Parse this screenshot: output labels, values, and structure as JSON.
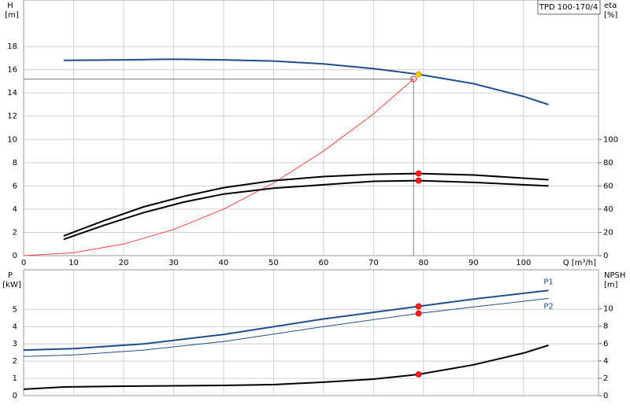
{
  "chart_data": [
    {
      "type": "line",
      "title": "TPD 100-170/4",
      "ylabel": "H",
      "yunit": "[m]",
      "y2label": "eta",
      "y2unit": "[%]",
      "xlabel": "Q [m³/h]",
      "xlim": [
        0,
        115
      ],
      "xticks": [
        0,
        10,
        20,
        30,
        40,
        50,
        60,
        70,
        80,
        90,
        100
      ],
      "xtick_labels": true,
      "ylim": [
        0,
        22
      ],
      "yticks": [
        0,
        2,
        4,
        6,
        8,
        10,
        12,
        14,
        16,
        18
      ],
      "y2lim": [
        0,
        220
      ],
      "y2ticks": [
        0,
        20,
        40,
        60,
        80,
        100
      ],
      "grid": true,
      "series": [
        {
          "color": "#1f4f8f",
          "line_width": 2,
          "x": [
            8,
            20,
            30,
            40,
            50,
            60,
            70,
            79,
            90,
            100,
            105
          ],
          "values": [
            16.8,
            16.85,
            16.9,
            16.85,
            16.75,
            16.5,
            16.1,
            15.6,
            14.8,
            13.7,
            13.0
          ]
        },
        {
          "color": "#ff2020",
          "line_width": 0.8,
          "x": [
            0,
            10,
            20,
            30,
            40,
            50,
            60,
            70,
            78
          ],
          "values": [
            0,
            0.25,
            1.0,
            2.25,
            4.0,
            6.25,
            9.0,
            12.2,
            15.2
          ]
        },
        {
          "color": "#000000",
          "line_width": 2,
          "axis": "y2",
          "x": [
            8,
            16,
            24,
            32,
            40,
            50,
            60,
            70,
            79,
            90,
            105
          ],
          "values": [
            17,
            30,
            42,
            51,
            58.5,
            64.6,
            68,
            70,
            70.7,
            69.4,
            65.3
          ]
        },
        {
          "color": "#000000",
          "line_width": 2,
          "axis": "y2",
          "x": [
            8,
            16,
            24,
            32,
            40,
            50,
            60,
            70,
            79,
            90,
            105
          ],
          "values": [
            14,
            26,
            37,
            46,
            53,
            58,
            61,
            64,
            64.6,
            63,
            60
          ]
        }
      ],
      "points": [
        {
          "x": 79,
          "y": 70.7,
          "axis": "y2",
          "color": "#ff2020"
        },
        {
          "x": 79,
          "y": 64.6,
          "axis": "y2",
          "color": "#ff2020"
        },
        {
          "x": 79,
          "y": 15.6,
          "color": "#ffcc00"
        }
      ],
      "duty_point": {
        "x": 78,
        "y": 15.2
      }
    },
    {
      "type": "line",
      "ylabel": "P",
      "yunit": "[kW]",
      "y2label": "NPSH",
      "y2unit": "[m]",
      "xlim": [
        0,
        115
      ],
      "xticks": [
        0,
        10,
        20,
        30,
        40,
        50,
        60,
        70,
        80,
        90,
        100
      ],
      "xtick_labels": false,
      "ylim": [
        0,
        7.3
      ],
      "yticks": [
        0,
        1,
        2,
        3,
        4,
        5
      ],
      "y2lim": [
        0,
        14.5
      ],
      "y2ticks": [
        0,
        2,
        4,
        6,
        8,
        10
      ],
      "grid": true,
      "series": [
        {
          "name": "P1",
          "color": "#1f4f8f",
          "line_width": 2,
          "x": [
            0,
            10,
            24,
            40,
            60,
            79,
            90,
            105
          ],
          "values": [
            2.64,
            2.73,
            3.0,
            3.55,
            4.45,
            5.18,
            5.6,
            6.1
          ]
        },
        {
          "name": "P2",
          "color": "#1f4f8f",
          "line_width": 1,
          "x": [
            0,
            10,
            24,
            40,
            60,
            79,
            90,
            105
          ],
          "values": [
            2.27,
            2.36,
            2.64,
            3.14,
            4.0,
            4.77,
            5.14,
            5.64
          ]
        },
        {
          "color": "#000000",
          "line_width": 2,
          "axis": "y2",
          "x": [
            0,
            8,
            20,
            40,
            50,
            60,
            70,
            79,
            90,
            100,
            105
          ],
          "values": [
            0.73,
            1.0,
            1.09,
            1.18,
            1.27,
            1.55,
            1.9,
            2.45,
            3.55,
            4.9,
            5.8
          ]
        }
      ],
      "points": [
        {
          "x": 79,
          "y": 5.18,
          "color": "#ff2020"
        },
        {
          "x": 79,
          "y": 4.77,
          "color": "#ff2020"
        },
        {
          "x": 79,
          "y": 2.45,
          "axis": "y2",
          "color": "#ff2020"
        }
      ]
    }
  ]
}
